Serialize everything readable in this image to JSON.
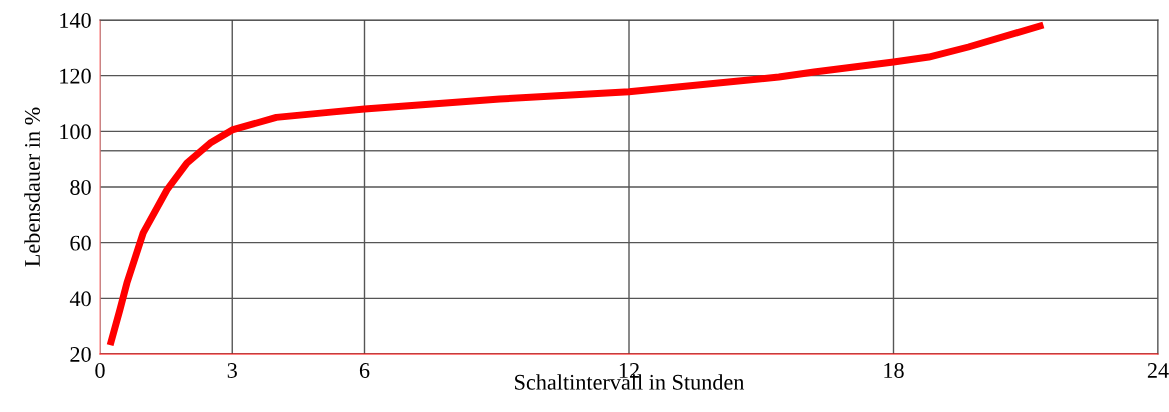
{
  "chart_data": {
    "type": "line",
    "xlabel": "Schaltintervall in Stunden",
    "ylabel": "Lebensdauer in %",
    "xlim": [
      0,
      24
    ],
    "xticks": [
      0,
      3,
      6,
      12,
      18,
      24
    ],
    "ylim": [
      20,
      140
    ],
    "yticks": [
      20,
      40,
      60,
      80,
      100,
      120,
      140
    ],
    "grid": true,
    "marker": "none",
    "line_style": "solid",
    "ref_lines": [
      {
        "axis": "y",
        "value": 93,
        "color": "#666666"
      }
    ],
    "series": [
      {
        "color": "#ff0000",
        "x": [
          0.23,
          0.45,
          0.61,
          0.98,
          1.52,
          1.97,
          2.5,
          3.0,
          4.0,
          5.3,
          6.0,
          9.07,
          12.0,
          15.4,
          16.2,
          18.0,
          18.8,
          19.7,
          21.4
        ],
        "values": [
          23.2,
          35.8,
          45.5,
          63.5,
          79,
          88.6,
          95.8,
          100.5,
          105,
          107,
          108,
          111.6,
          114.2,
          119.5,
          121.3,
          124.9,
          126.7,
          130.3,
          138.2
        ]
      }
    ]
  }
}
